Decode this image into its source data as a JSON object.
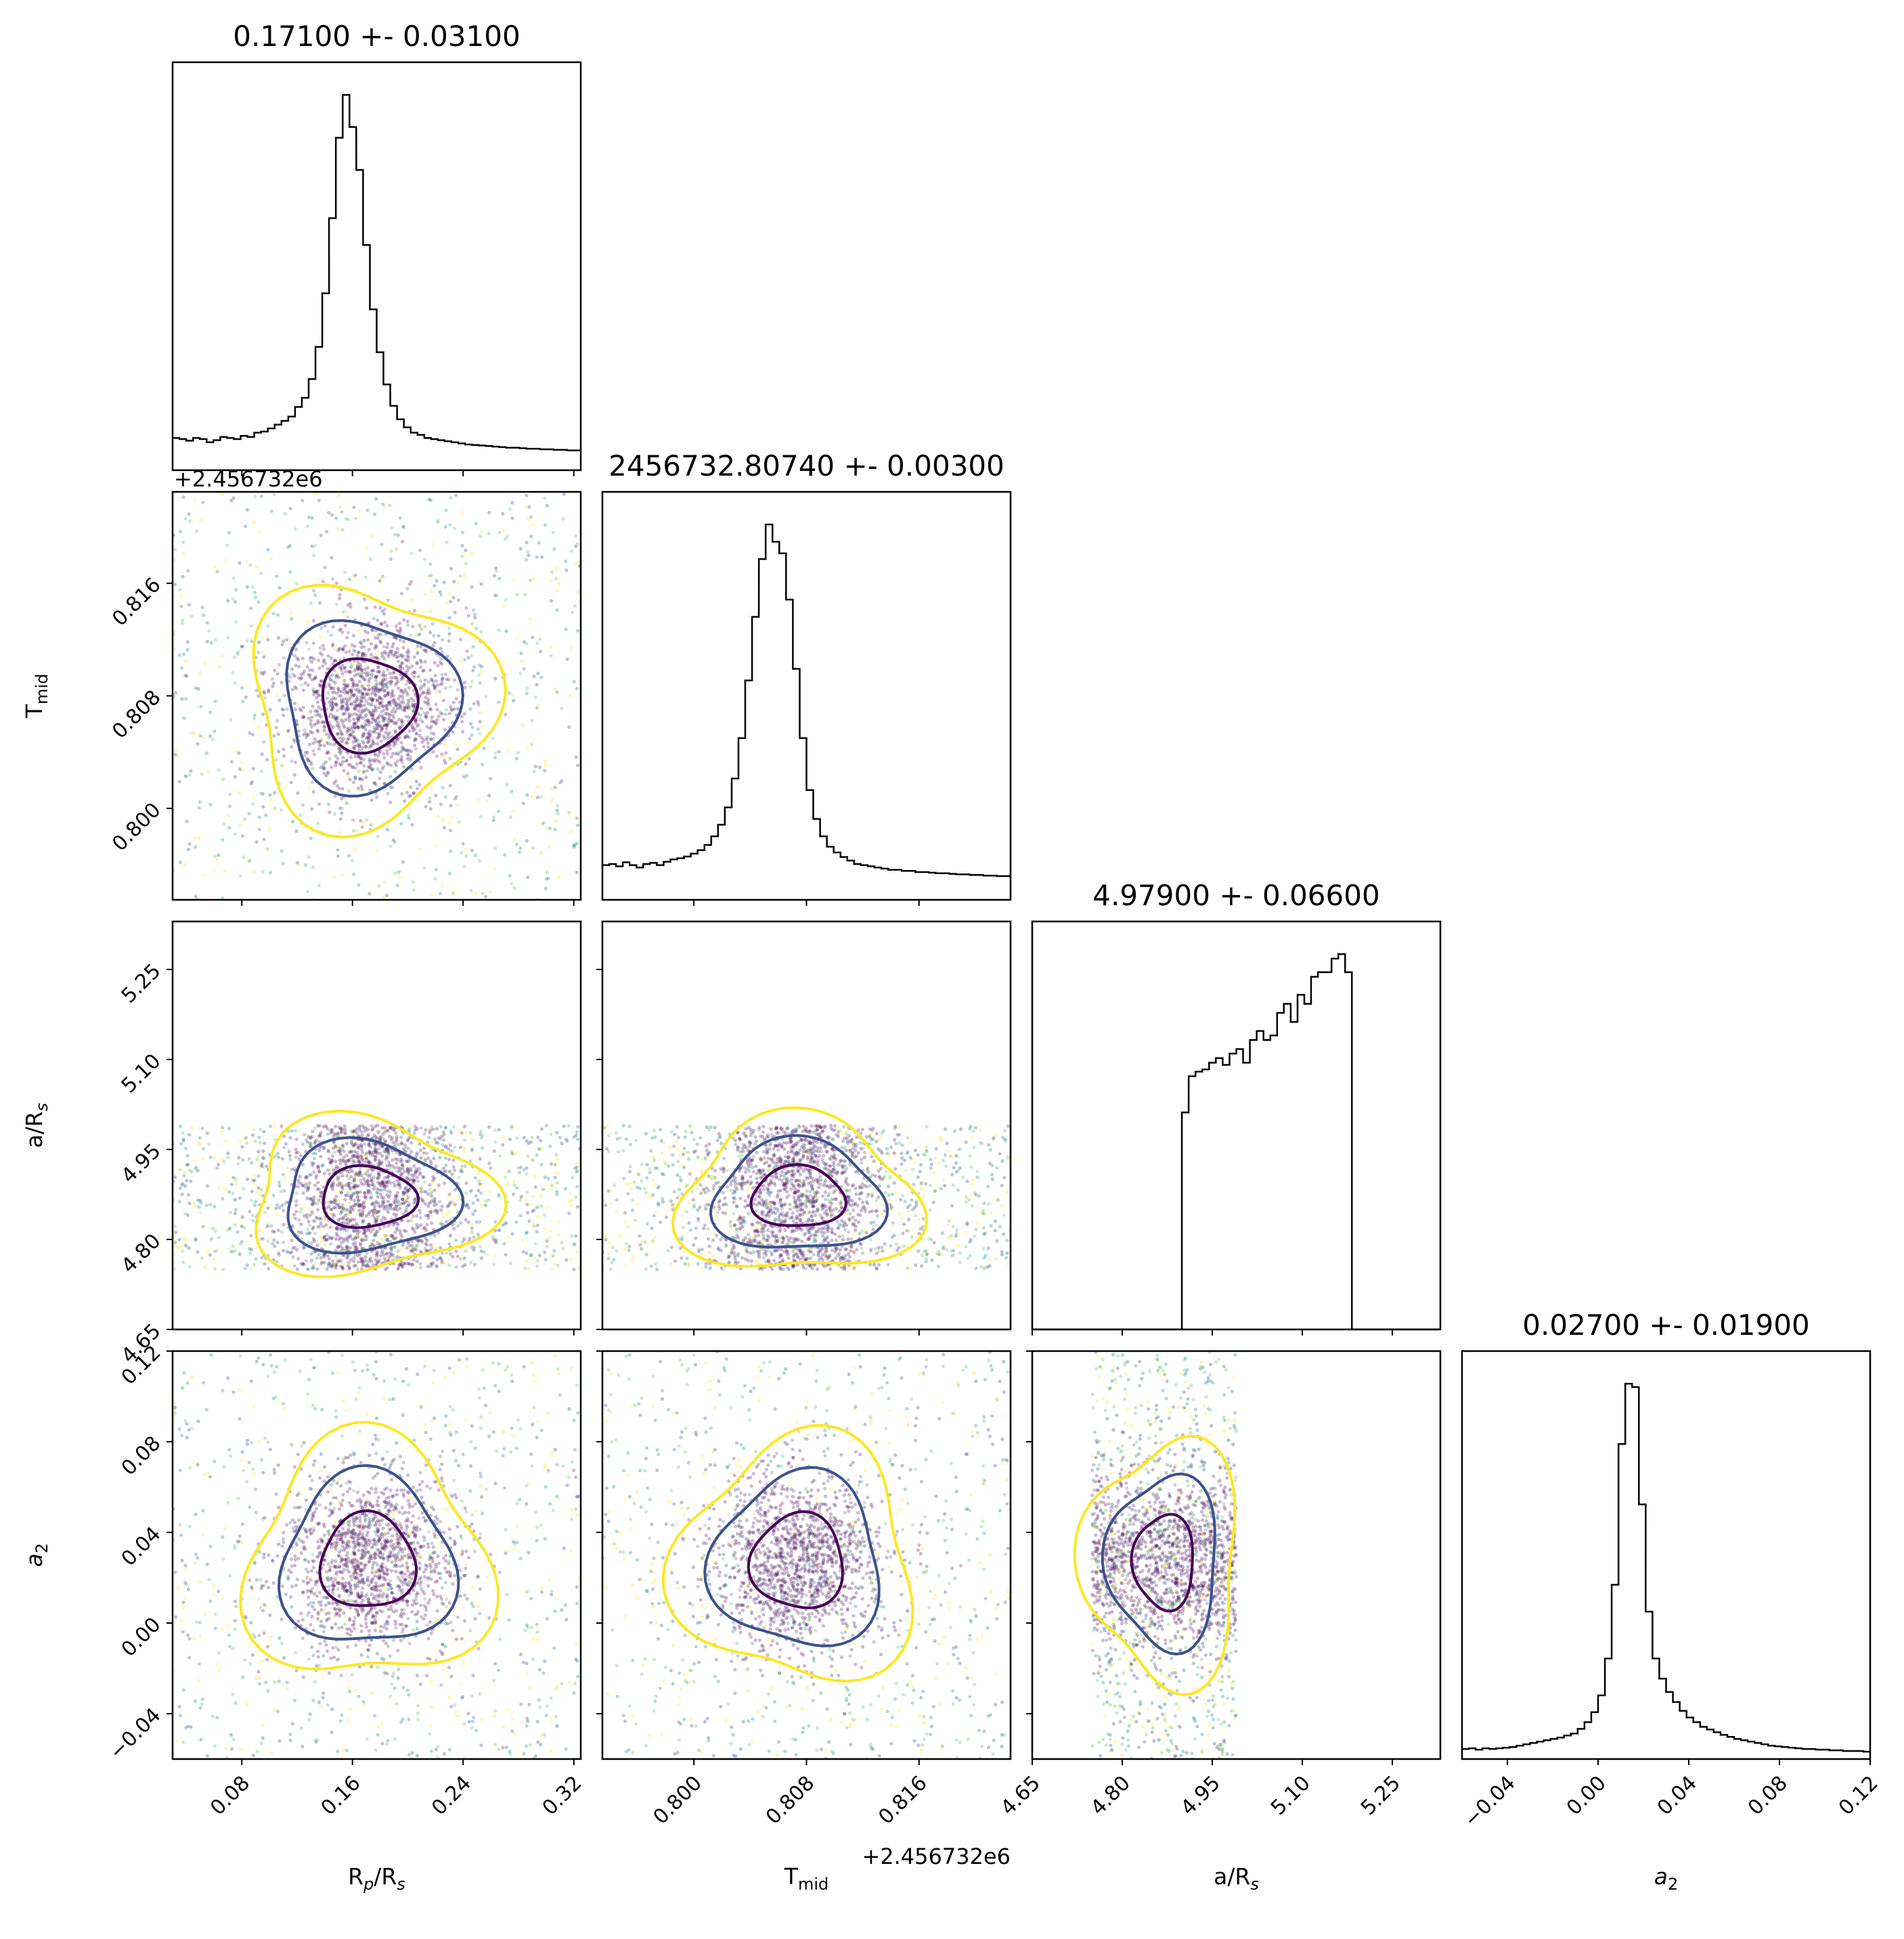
{
  "chart_data": {
    "type": "corner",
    "parameters": [
      {
        "symbol": "R",
        "sub": "p",
        "tail": "/R",
        "tailsub": "s",
        "range": [
          0.03,
          0.325
        ],
        "ticks": [
          "0.08",
          "0.16",
          "0.24",
          "0.32"
        ],
        "tick_values": [
          0.08,
          0.16,
          0.24,
          0.32
        ],
        "offset": "",
        "title": "0.17100 +- 0.03100",
        "center": 0.171,
        "sigma": 0.031
      },
      {
        "symbol": "T",
        "sub": "mid",
        "tail": "",
        "tailsub": "",
        "range": [
          0.7935,
          0.8225
        ],
        "ticks": [
          "0.800",
          "0.808",
          "0.816"
        ],
        "tick_values": [
          0.8,
          0.808,
          0.816
        ],
        "offset": "+2.456732e6",
        "title": "2456732.80740 +- 0.00300",
        "center": 0.8074,
        "sigma": 0.003
      },
      {
        "symbol": "a/R",
        "sub": "s",
        "tail": "",
        "tailsub": "",
        "range": [
          4.65,
          5.33
        ],
        "ticks": [
          "4.65",
          "4.80",
          "4.95",
          "5.10",
          "5.25"
        ],
        "tick_values": [
          4.65,
          4.8,
          4.95,
          5.1,
          5.25
        ],
        "offset": "",
        "title": "4.97900 +- 0.06600",
        "center": 4.979,
        "sigma": 0.066,
        "prior": [
          4.75,
          4.99
        ]
      },
      {
        "symbol": "a",
        "sub": "2",
        "tail": "",
        "tailsub": "",
        "italic": true,
        "range": [
          -0.06,
          0.12
        ],
        "ticks": [
          "−0.04",
          "0.00",
          "0.04",
          "0.08",
          "0.12"
        ],
        "tick_values": [
          -0.04,
          0.0,
          0.04,
          0.08,
          0.12
        ],
        "offset": "",
        "title": "0.02700 +- 0.01900",
        "center": 0.027,
        "sigma": 0.019
      }
    ],
    "histograms": [
      {
        "bins": 60,
        "counts": [
          60,
          58,
          55,
          60,
          58,
          52,
          56,
          62,
          60,
          58,
          64,
          62,
          70,
          72,
          78,
          85,
          92,
          100,
          118,
          135,
          170,
          230,
          330,
          470,
          620,
          700,
          640,
          560,
          420,
          300,
          220,
          160,
          120,
          95,
          80,
          70,
          66,
          60,
          58,
          56,
          54,
          52,
          50,
          48,
          47,
          46,
          45,
          44,
          43,
          42,
          42,
          41,
          40,
          40,
          39,
          39,
          38,
          38,
          37,
          37
        ]
      },
      {
        "bins": 60,
        "counts": [
          60,
          62,
          58,
          65,
          60,
          56,
          62,
          64,
          60,
          66,
          70,
          72,
          75,
          80,
          86,
          95,
          110,
          130,
          160,
          210,
          280,
          380,
          490,
          590,
          650,
          620,
          600,
          520,
          400,
          280,
          190,
          140,
          110,
          92,
          82,
          74,
          68,
          62,
          60,
          58,
          56,
          54,
          52,
          52,
          50,
          50,
          48,
          48,
          47,
          46,
          46,
          45,
          44,
          44,
          43,
          43,
          42,
          42,
          41,
          41
        ]
      },
      {
        "bins": 60,
        "counts": [
          0,
          0,
          0,
          0,
          0,
          0,
          0,
          0,
          0,
          0,
          0,
          0,
          0,
          0,
          0,
          0,
          0,
          0,
          0,
          0,
          0,
          0,
          480,
          560,
          570,
          575,
          590,
          600,
          585,
          610,
          620,
          590,
          640,
          660,
          640,
          650,
          700,
          720,
          680,
          740,
          720,
          780,
          790,
          790,
          820,
          830,
          790,
          0,
          0,
          0,
          0,
          0,
          0,
          0,
          0,
          0,
          0,
          0,
          0,
          0
        ]
      },
      {
        "bins": 60,
        "counts": [
          15,
          16,
          14,
          16,
          15,
          16,
          17,
          18,
          20,
          22,
          24,
          26,
          28,
          30,
          32,
          35,
          38,
          45,
          55,
          70,
          95,
          150,
          260,
          470,
          560,
          555,
          380,
          220,
          150,
          120,
          100,
          85,
          72,
          62,
          55,
          48,
          44,
          40,
          36,
          33,
          30,
          28,
          26,
          24,
          22,
          20,
          19,
          18,
          17,
          16,
          15,
          15,
          14,
          14,
          13,
          13,
          12,
          12,
          12,
          11
        ]
      }
    ],
    "colors": {
      "hist": "#000000",
      "inner_contour": "#440154",
      "outer_contour": "#3b528b",
      "far_contour": "#fde725",
      "scatter_colormap": [
        "#440154",
        "#3b528b",
        "#21918c",
        "#5ec962",
        "#fde725"
      ]
    }
  }
}
